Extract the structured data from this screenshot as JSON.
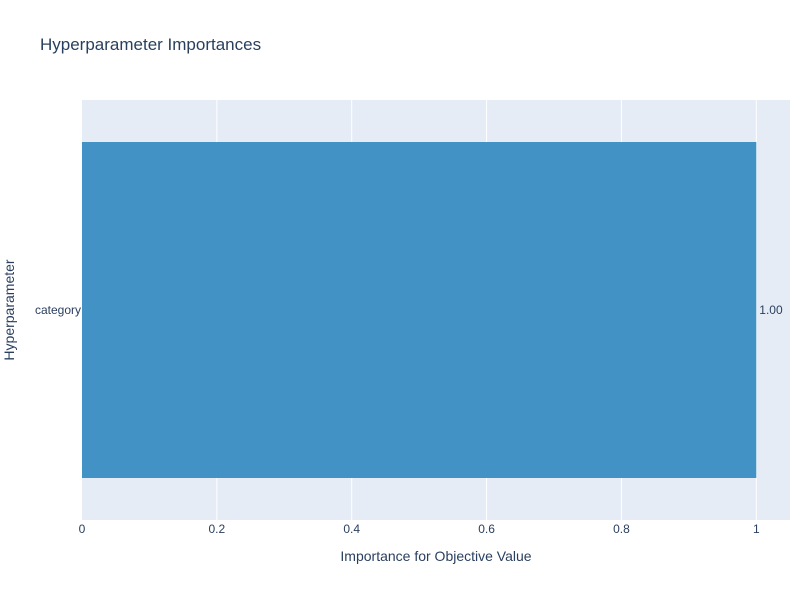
{
  "chart_data": {
    "type": "bar",
    "orientation": "horizontal",
    "title": "Hyperparameter Importances",
    "xlabel": "Importance for Objective Value",
    "ylabel": "Hyperparameter",
    "categories": [
      "category"
    ],
    "values": [
      1.0
    ],
    "value_labels": [
      "1.00"
    ],
    "xlim": [
      0,
      1.05
    ],
    "x_ticks": [
      0,
      0.2,
      0.4,
      0.6,
      0.8,
      1
    ],
    "x_tick_labels": [
      "0",
      "0.2",
      "0.4",
      "0.6",
      "0.8",
      "1"
    ],
    "grid": true,
    "colors": {
      "bar": "#4292c6",
      "plot_background": "#e5ecf6",
      "grid": "#ffffff",
      "text": "#2a3f5f"
    }
  }
}
